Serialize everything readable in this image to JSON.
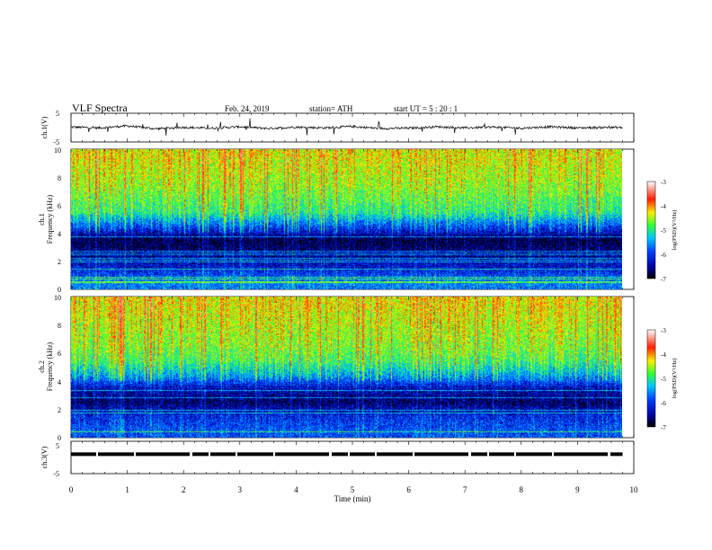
{
  "header": {
    "title": "VLF  Spectra",
    "date": "Feb. 24, 2019",
    "station": "station= ATH",
    "start": "start  UT  =    5  : 20 : 1"
  },
  "panels": {
    "ch1_wave": {
      "ylabel": "ch.1(V)",
      "ticks": [
        "5",
        "-5"
      ]
    },
    "ch1_spec": {
      "ylabel_line1": "ch.1",
      "ylabel_line2": "Frequency  (kHz)",
      "ticks": [
        "0",
        "2",
        "4",
        "6",
        "8",
        "10"
      ]
    },
    "ch2_spec": {
      "ylabel_line1": "ch.2",
      "ylabel_line2": "Frequency  (kHz)",
      "ticks": [
        "0",
        "2",
        "4",
        "6",
        "8",
        "10"
      ]
    },
    "ch3_wave": {
      "ylabel": "ch.3(V)",
      "ticks": [
        "5",
        "-5"
      ]
    }
  },
  "colorbar": {
    "label": "log(PSD)(V²/Hz)",
    "ticks": [
      "-3",
      "-4",
      "-5",
      "-6",
      "-7"
    ]
  },
  "xaxis": {
    "label": "Time  (min)",
    "ticks": [
      "0",
      "1",
      "2",
      "3",
      "4",
      "5",
      "6",
      "7",
      "8",
      "9",
      "10"
    ]
  },
  "chart_data": [
    {
      "type": "line",
      "panel": "ch.1(V)",
      "xlabel": "Time  (min)",
      "ylabel": "ch.1(V)",
      "xlim": [
        0,
        10
      ],
      "ylim": [
        -5,
        5
      ],
      "x": [
        0.0,
        0.5,
        1.0,
        1.5,
        2.0,
        2.5,
        3.0,
        3.5,
        4.0,
        4.5,
        5.0,
        5.5,
        6.0,
        6.5,
        7.0,
        7.5,
        8.0,
        8.5,
        9.0,
        9.5,
        9.8
      ],
      "y": [
        0.2,
        -0.1,
        0.6,
        -0.4,
        0.1,
        -0.2,
        0.3,
        -0.3,
        0.2,
        -0.1,
        0.4,
        -0.3,
        -0.2,
        0.3,
        -0.1,
        0.2,
        -0.2,
        0.3,
        -0.1,
        0.1,
        0.0
      ]
    },
    {
      "type": "heatmap",
      "panel": "ch.1",
      "xlabel": "Time  (min)",
      "ylabel": "Frequency  (kHz)",
      "xlim": [
        0,
        9.8
      ],
      "ylim": [
        0,
        10
      ],
      "zlim": [
        -7,
        -3
      ],
      "zlabel": "log(PSD)(V²/Hz)",
      "freq_kHz": [
        0.5,
        1.5,
        2.5,
        3.5,
        4.5,
        5.5,
        6.5,
        7.5,
        8.5,
        9.5
      ],
      "mean_log_psd": [
        -5.8,
        -6.3,
        -6.6,
        -6.8,
        -6.0,
        -5.2,
        -5.0,
        -4.8,
        -4.7,
        -4.6
      ]
    },
    {
      "type": "heatmap",
      "panel": "ch.2",
      "xlabel": "Time  (min)",
      "ylabel": "Frequency  (kHz)",
      "xlim": [
        0,
        9.8
      ],
      "ylim": [
        0,
        10
      ],
      "zlim": [
        -7,
        -3
      ],
      "zlabel": "log(PSD)(V²/Hz)",
      "freq_kHz": [
        0.5,
        1.5,
        2.5,
        3.5,
        4.5,
        5.5,
        6.5,
        7.5,
        8.5,
        9.5
      ],
      "mean_log_psd": [
        -6.0,
        -6.2,
        -6.7,
        -6.4,
        -5.6,
        -5.1,
        -4.9,
        -4.8,
        -4.7,
        -4.6
      ]
    },
    {
      "type": "line",
      "panel": "ch.3(V)",
      "xlabel": "Time  (min)",
      "ylabel": "ch.3(V)",
      "xlim": [
        0,
        10
      ],
      "ylim": [
        -5,
        5
      ],
      "x": [
        0.0,
        9.8
      ],
      "y": [
        1.0,
        1.0
      ]
    }
  ],
  "colors": {
    "low": "#000080",
    "blue": "#0000ff",
    "cyan": "#00c8ff",
    "green": "#33ff33",
    "yellow": "#ffee00",
    "red": "#ff0000",
    "high": "#ffffff"
  }
}
